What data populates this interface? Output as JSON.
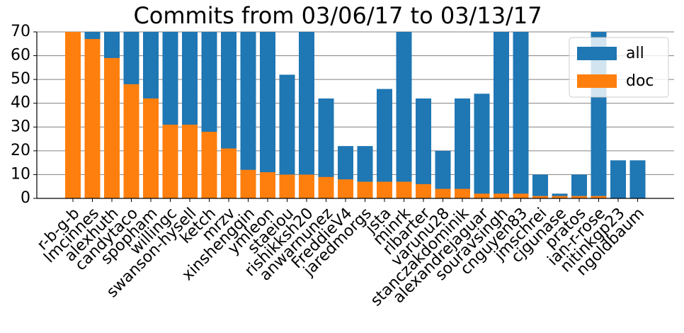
{
  "chart_data": {
    "type": "bar",
    "title": "Commits from 03/06/17 to 03/13/17",
    "categories": [
      "r-b-g-b",
      "lmcinnes",
      "alexhuth",
      "candytaco",
      "spopham",
      "willingc",
      "swanson-hysell",
      "ketch",
      "mrzv",
      "xinshengqin",
      "ymleon",
      "staeiou",
      "rishikksh20",
      "anwarnunez",
      "FreddieV4",
      "jaredmorgs",
      "jsta",
      "minrk",
      "rlbarter",
      "varunu28",
      "stanczakdominik",
      "alexandrejaguar",
      "souravsingh",
      "cnguyen83",
      "jmschrei",
      "cjgunase",
      "pratos",
      "ian-r-rose",
      "nitinkgp23",
      "ngoldbaum"
    ],
    "series": [
      {
        "name": "all",
        "color": "#1f77b4",
        "values": [
          70,
          70,
          70,
          70,
          70,
          70,
          70,
          70,
          70,
          70,
          70,
          52,
          70,
          42,
          22,
          22,
          46,
          70,
          42,
          20,
          42,
          44,
          70,
          70,
          10,
          2,
          10,
          70,
          16,
          16
        ]
      },
      {
        "name": "doc",
        "color": "#ff7f0e",
        "values": [
          70,
          67,
          59,
          48,
          42,
          31,
          31,
          28,
          21,
          12,
          11,
          10,
          10,
          9,
          8,
          7,
          7,
          7,
          6,
          4,
          4,
          2,
          2,
          2,
          1,
          1,
          1,
          1,
          0,
          0
        ]
      }
    ],
    "ylim": [
      0,
      70
    ],
    "yticks": [
      0,
      10,
      20,
      30,
      40,
      50,
      60,
      70
    ],
    "grid": true,
    "legend": "upper right"
  }
}
